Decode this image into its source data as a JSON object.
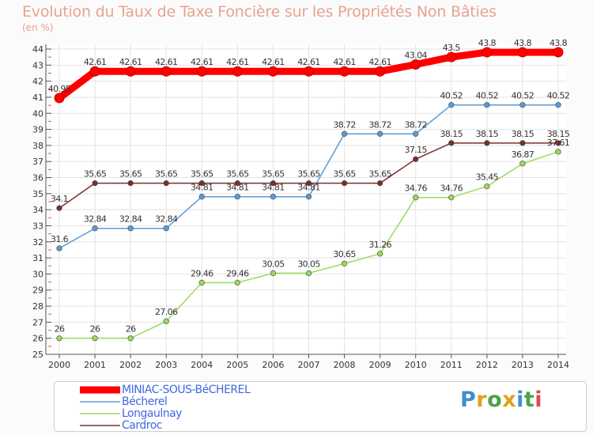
{
  "header": {
    "title": "Evolution du Taux de Taxe Foncière sur les Propriétés Non Bâties",
    "unit": "(en %)"
  },
  "logo": {
    "text": "Proxiti",
    "colors": [
      "#3f8fd1",
      "#e3a01c",
      "#4aa34a",
      "#e3a01c",
      "#3f8fd1",
      "#4aa34a",
      "#e04848"
    ]
  },
  "chart_data": {
    "type": "line",
    "title": "Evolution du Taux de Taxe Foncière sur les Propriétés Non Bâties",
    "xlabel": "",
    "ylabel": "(en %)",
    "ylim": [
      25,
      44
    ],
    "x": [
      "2000",
      "2001",
      "2002",
      "2003",
      "2004",
      "2005",
      "2006",
      "2007",
      "2008",
      "2009",
      "2010",
      "2011",
      "2012",
      "2013",
      "2014"
    ],
    "yticks": [
      25,
      26,
      27,
      28,
      29,
      30,
      31,
      32,
      33,
      34,
      35,
      36,
      37,
      38,
      39,
      40,
      41,
      42,
      43,
      44
    ],
    "grid": true,
    "legend_position": "bottom",
    "series": [
      {
        "name": "MINIAC-SOUS-BéCHEREL",
        "color": "#ff0000",
        "values": [
          40.95,
          42.61,
          42.61,
          42.61,
          42.61,
          42.61,
          42.61,
          42.61,
          42.61,
          42.61,
          43.04,
          43.5,
          43.8,
          43.8,
          43.8
        ],
        "labels": [
          "40.95",
          "42.61",
          "42.61",
          "42.61",
          "42.61",
          "42.61",
          "42.61",
          "42.61",
          "42.61",
          "42.61",
          "43.04",
          "43.5",
          "43.8",
          "43.8",
          "43.8"
        ]
      },
      {
        "name": "Bécherel",
        "color": "#5b9bd5",
        "values": [
          31.6,
          32.84,
          32.84,
          32.84,
          34.81,
          34.81,
          34.81,
          34.81,
          38.72,
          38.72,
          38.72,
          40.52,
          40.52,
          40.52,
          40.52
        ],
        "labels": [
          "31.6",
          "32.84",
          "32.84",
          "32.84",
          "34.81",
          "34.81",
          "34.81",
          "34.81",
          "38.72",
          "38.72",
          "38.72",
          "40.52",
          "40.52",
          "40.52",
          "40.52"
        ]
      },
      {
        "name": "Longaulnay",
        "color": "#9bdb5a",
        "values": [
          26,
          26,
          26,
          27.06,
          29.46,
          29.46,
          30.05,
          30.05,
          30.65,
          31.26,
          34.76,
          34.76,
          35.45,
          36.87,
          37.61
        ],
        "labels": [
          "26",
          "26",
          "26",
          "27.06",
          "29.46",
          "29.46",
          "30.05",
          "30.05",
          "30.65",
          "31.26",
          "34.76",
          "34.76",
          "35.45",
          "36.87",
          "37.61"
        ]
      },
      {
        "name": "Cardroc",
        "color": "#7a2f2f",
        "values": [
          34.1,
          35.65,
          35.65,
          35.65,
          35.65,
          35.65,
          35.65,
          35.65,
          35.65,
          35.65,
          37.15,
          38.15,
          38.15,
          38.15,
          38.15
        ],
        "labels": [
          "34.1",
          "35.65",
          "35.65",
          "35.65",
          "35.65",
          "35.65",
          "35.65",
          "35.65",
          "35.65",
          "35.65",
          "37.15",
          "38.15",
          "38.15",
          "38.15",
          "38.15"
        ]
      }
    ]
  }
}
